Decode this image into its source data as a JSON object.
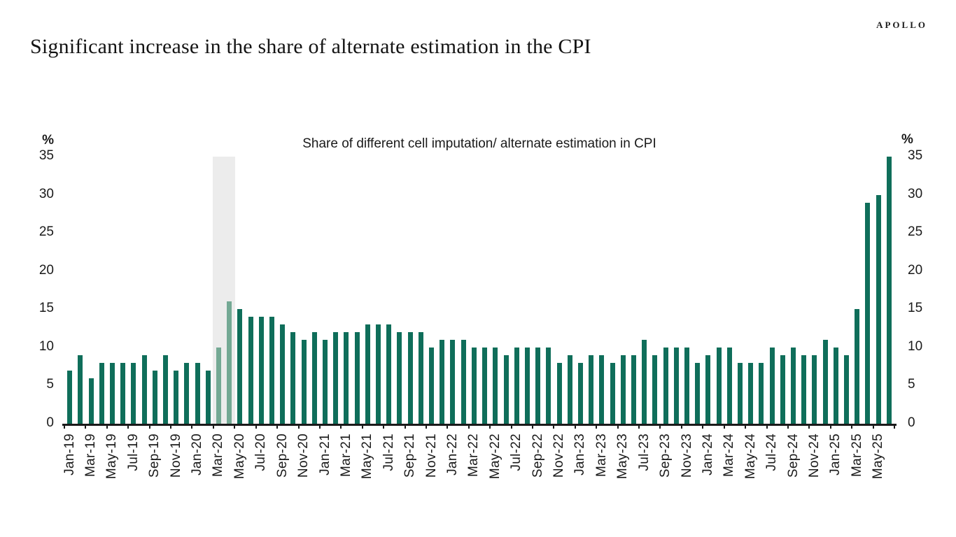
{
  "header": {
    "brand": "APOLLO",
    "title": "Significant increase in the share of alternate estimation in the CPI"
  },
  "chart_data": {
    "type": "bar",
    "title": "Share of different cell imputation/ alternate estimation in CPI",
    "unit_label": "%",
    "ylim": [
      0,
      35
    ],
    "yticks": [
      35,
      30,
      25,
      20,
      15,
      10,
      5,
      0
    ],
    "grid": false,
    "legend": false,
    "x_label_interval": 2,
    "categories": [
      "Jan-19",
      "Feb-19",
      "Mar-19",
      "Apr-19",
      "May-19",
      "Jun-19",
      "Jul-19",
      "Aug-19",
      "Sep-19",
      "Oct-19",
      "Nov-19",
      "Dec-19",
      "Jan-20",
      "Feb-20",
      "Mar-20",
      "Apr-20",
      "May-20",
      "Jun-20",
      "Jul-20",
      "Aug-20",
      "Sep-20",
      "Oct-20",
      "Nov-20",
      "Dec-20",
      "Jan-21",
      "Feb-21",
      "Mar-21",
      "Apr-21",
      "May-21",
      "Jun-21",
      "Jul-21",
      "Aug-21",
      "Sep-21",
      "Oct-21",
      "Nov-21",
      "Dec-21",
      "Jan-22",
      "Feb-22",
      "Mar-22",
      "Apr-22",
      "May-22",
      "Jun-22",
      "Jul-22",
      "Aug-22",
      "Sep-22",
      "Oct-22",
      "Nov-22",
      "Dec-22",
      "Jan-23",
      "Feb-23",
      "Mar-23",
      "Apr-23",
      "May-23",
      "Jun-23",
      "Jul-23",
      "Aug-23",
      "Sep-23",
      "Oct-23",
      "Nov-23",
      "Dec-23",
      "Jan-24",
      "Feb-24",
      "Mar-24",
      "Apr-24",
      "May-24",
      "Jun-24",
      "Jul-24",
      "Aug-24",
      "Sep-24",
      "Oct-24",
      "Nov-24",
      "Dec-24",
      "Jan-25",
      "Feb-25",
      "Mar-25",
      "Apr-25",
      "May-25",
      "Jun-25"
    ],
    "values": [
      7,
      9,
      6,
      8,
      8,
      8,
      8,
      9,
      7,
      9,
      7,
      8,
      8,
      7,
      10,
      16,
      15,
      14,
      14,
      14,
      13,
      12,
      11,
      12,
      11,
      12,
      12,
      12,
      13,
      13,
      13,
      12,
      12,
      12,
      10,
      11,
      11,
      11,
      10,
      10,
      10,
      9,
      10,
      10,
      10,
      10,
      8,
      9,
      8,
      9,
      9,
      8,
      9,
      9,
      11,
      9,
      10,
      10,
      10,
      8,
      9,
      10,
      10,
      8,
      8,
      8,
      10,
      9,
      10,
      9,
      9,
      11,
      10,
      9,
      15,
      29,
      30,
      35
    ],
    "highlight_band": {
      "from": "Mar-20",
      "to": "Apr-20"
    },
    "highlight_months": [
      "Mar-20",
      "Apr-20"
    ],
    "colors": {
      "bar": "#0f6e5a",
      "bar_highlight": "#74a994",
      "band": "#ececec",
      "axis": "#1a1a1a"
    }
  }
}
